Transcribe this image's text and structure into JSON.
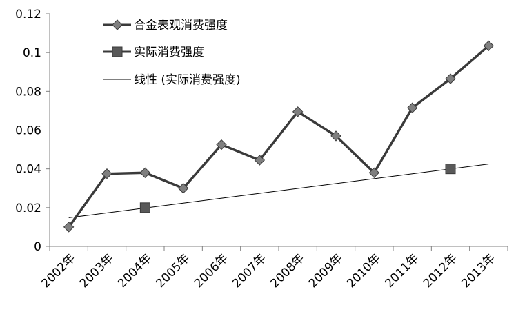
{
  "chart_data": {
    "type": "line",
    "categories": [
      "2002年",
      "2003年",
      "2004年",
      "2005年",
      "2006年",
      "2007年",
      "2008年",
      "2009年",
      "2010年",
      "2011年",
      "2012年",
      "2013年"
    ],
    "series": [
      {
        "name": "合金表观消费强度",
        "marker": "diamond",
        "values": [
          0.01,
          0.0375,
          0.038,
          0.03,
          0.0525,
          0.0445,
          0.0695,
          0.057,
          0.038,
          0.0715,
          0.0865,
          0.1035
        ]
      },
      {
        "name": "实际消费强度",
        "marker": "square",
        "values": [
          null,
          null,
          0.02,
          null,
          null,
          null,
          null,
          null,
          null,
          null,
          0.04,
          null
        ]
      }
    ],
    "trendline": {
      "name": "线性 (实际消费强度)",
      "from": {
        "category": "2002年",
        "value": 0.0148
      },
      "to": {
        "category": "2013年",
        "value": 0.0425
      }
    },
    "ylim": [
      0,
      0.12
    ],
    "yticks": [
      "0",
      "0.02",
      "0.04",
      "0.06",
      "0.08",
      "0.1",
      "0.12"
    ],
    "grid": false,
    "legend_position": "top-left",
    "colors": {
      "line": "#3a3a3a",
      "diamond_fill": "#7f7f7f",
      "square_fill": "#595959",
      "marker_stroke": "#3a3a3a",
      "trend": "#000000",
      "axis": "#808080"
    },
    "title": "",
    "xlabel": "",
    "ylabel": ""
  }
}
